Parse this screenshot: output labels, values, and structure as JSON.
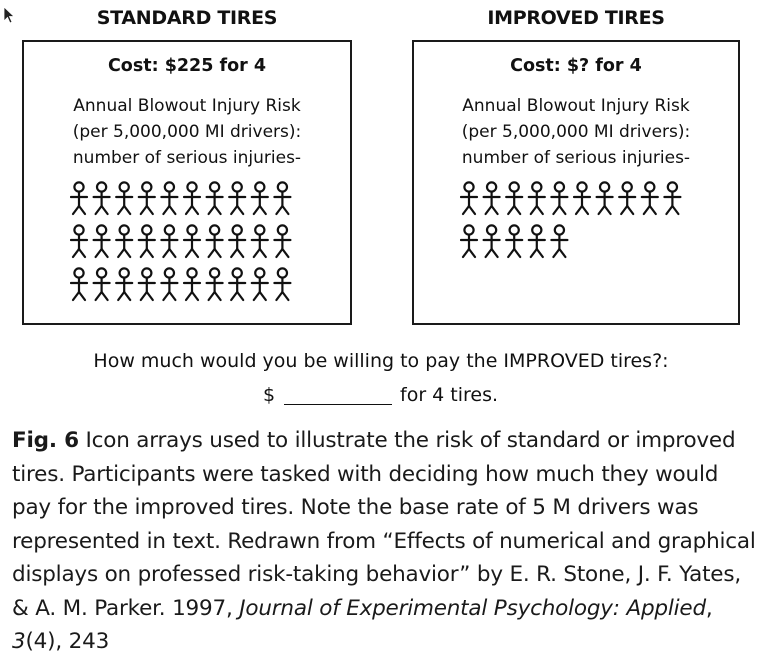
{
  "panels": [
    {
      "title": "STANDARD TIRES",
      "cost": "Cost:  $225 for 4",
      "risk_lines": [
        "Annual Blowout Injury Risk",
        "(per 5,000,000 MI drivers):",
        "number of serious injuries-"
      ],
      "icon_count": 30
    },
    {
      "title": "IMPROVED TIRES",
      "cost": "Cost:  $? for 4",
      "risk_lines": [
        "Annual Blowout Injury Risk",
        "(per 5,000,000 MI drivers):",
        "number of serious injuries-"
      ],
      "icon_count": 15
    }
  ],
  "icon": "person-icon",
  "question": "How much would you be willing to pay the IMPROVED tires?:",
  "price": {
    "dollar": "$",
    "suffix": "for 4 tires."
  },
  "caption": {
    "label": "Fig. 6",
    "text_1": " Icon arrays used to illustrate the risk of standard or improved tires. Participants were tasked with deciding how much they would pay for the improved tires. Note the base rate of 5 M drivers was represented in text. Redrawn from “Effects of numerical and graphical displays on professed risk-taking behavior” by E. R. Stone, J. F. Yates, & A. M. Parker. 1997, ",
    "journal": "Journal of Experimental Psychology: Applied",
    "text_2": ", ",
    "volume": "3",
    "text_3": "(4), 243"
  }
}
